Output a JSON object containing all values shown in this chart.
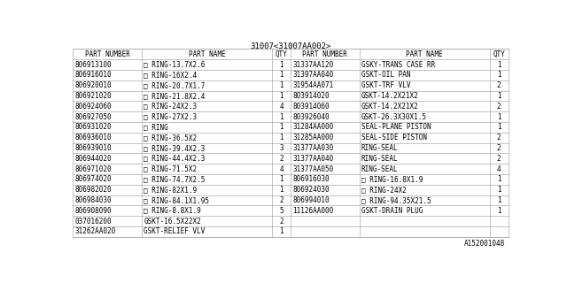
{
  "title": "31007<31007AA002>",
  "footer": "A152001048",
  "bg_color": "#ffffff",
  "headers_left": [
    "PART NUMBER",
    "PART NAME",
    "QTY"
  ],
  "headers_right": [
    "PART NUMBER",
    "PART NAME",
    "QTY"
  ],
  "left_rows": [
    [
      "806913100",
      "□ RING-13.7X2.6",
      "1"
    ],
    [
      "806916010",
      "□ RING-16X2.4",
      "1"
    ],
    [
      "806920010",
      "□ RING-20.7X1.7",
      "1"
    ],
    [
      "806921020",
      "□ RING-21.8X2.4",
      "1"
    ],
    [
      "806924060",
      "□ RING-24X2.3",
      "4"
    ],
    [
      "806927050",
      "□ RING-27X2.3",
      "1"
    ],
    [
      "806931020",
      "□ RING",
      "1"
    ],
    [
      "806936010",
      "□ RING-36.5X2",
      "1"
    ],
    [
      "806939010",
      "□ RING-39.4X2.3",
      "3"
    ],
    [
      "806944020",
      "□ RING-44.4X2.3",
      "2"
    ],
    [
      "806971020",
      "□ RING-71.5X2",
      "4"
    ],
    [
      "806974020",
      "□ RING-74.7X2.5",
      "1"
    ],
    [
      "806982020",
      "□ RING-82X1.9",
      "1"
    ],
    [
      "806984030",
      "□ RING-84.1X1.95",
      "2"
    ],
    [
      "806908090",
      "□ RING-8.8X1.9",
      "5"
    ],
    [
      "037016200",
      "GSKT-16.5X22X2",
      "2"
    ],
    [
      "31262AA020",
      "GSKT-RELIEF VLV",
      "1"
    ]
  ],
  "right_rows": [
    [
      "31337AA120",
      "GSKY-TRANS CASE RR",
      "1"
    ],
    [
      "31397AA040",
      "GSKT-OIL PAN",
      "1"
    ],
    [
      "31954AA071",
      "GSKT-TRF VLV",
      "2"
    ],
    [
      "803914020",
      "GSKT-14.2X21X2",
      "1"
    ],
    [
      "803914060",
      "GSKT-14.2X21X2",
      "2"
    ],
    [
      "803926040",
      "GSKT-26.3X30X1.5",
      "1"
    ],
    [
      "31284AA000",
      "SEAL-PLANE PISTON",
      "1"
    ],
    [
      "31285AA000",
      "SEAL-SIDE PISTON",
      "2"
    ],
    [
      "31377AA030",
      "RING-SEAL",
      "2"
    ],
    [
      "31377AA040",
      "RING-SEAL",
      "2"
    ],
    [
      "31377AA050",
      "RING-SEAL",
      "4"
    ],
    [
      "806916030",
      "□ RING-16.8X1.9",
      "1"
    ],
    [
      "806924030",
      "□ RING-24X2",
      "1"
    ],
    [
      "806994010",
      "□ RING-94.35X21.5",
      "1"
    ],
    [
      "11126AA000",
      "GSKT-DRAIN PLUG",
      "1"
    ],
    [
      "",
      "",
      ""
    ],
    [
      "",
      "",
      ""
    ]
  ],
  "font_size": 5.5,
  "header_font_size": 5.5,
  "line_color": "#aaaaaa",
  "text_color": "#000000",
  "table_bg": "#ffffff",
  "title_fontsize": 6.5,
  "footer_fontsize": 5.5
}
